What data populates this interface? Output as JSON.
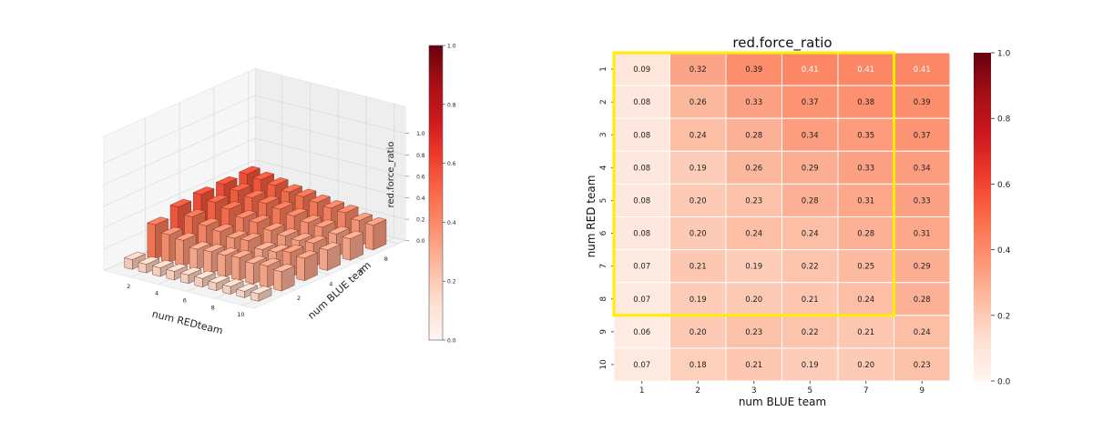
{
  "colors": {
    "cmap": [
      "#fff5f0",
      "#fee0d2",
      "#fcbba1",
      "#fc9272",
      "#fb6a4a",
      "#ef3b2c",
      "#cb181d",
      "#a50f15",
      "#67000d"
    ],
    "highlight": "#ffee00",
    "grid": "#d0d0d0",
    "bar_edge": "#6b2a1a"
  },
  "chart_data": [
    {
      "type": "bar3d",
      "xlabel": "num REDteam",
      "ylabel": "num BLUE team",
      "zlabel": "red.force_ratio",
      "x_ticks": [
        2,
        4,
        6,
        8,
        10
      ],
      "y_ticks": [
        2,
        4,
        6,
        8
      ],
      "z_ticks": [
        0.0,
        0.2,
        0.4,
        0.6,
        0.8,
        1.0
      ],
      "z_tick_labels": [
        "0.0",
        "0.2",
        "0.4",
        "0.6",
        "0.8",
        "1.0"
      ],
      "zlim": [
        0,
        1
      ],
      "colorbar_ticks": [
        "0.0",
        "0.2",
        "0.4",
        "0.6",
        "0.8",
        "1.0"
      ],
      "grid": true
    },
    {
      "type": "heatmap",
      "title": "red.force_ratio",
      "xlabel": "num BLUE team",
      "ylabel": "num RED team",
      "x_categories": [
        "1",
        "2",
        "3",
        "5",
        "7",
        "9"
      ],
      "y_categories": [
        "1",
        "2",
        "3",
        "4",
        "5",
        "6",
        "7",
        "8",
        "9",
        "10"
      ],
      "values": [
        [
          0.09,
          0.32,
          0.39,
          0.41,
          0.41,
          0.41
        ],
        [
          0.08,
          0.26,
          0.33,
          0.37,
          0.38,
          0.39
        ],
        [
          0.08,
          0.24,
          0.28,
          0.34,
          0.35,
          0.37
        ],
        [
          0.08,
          0.19,
          0.26,
          0.29,
          0.33,
          0.34
        ],
        [
          0.08,
          0.2,
          0.23,
          0.28,
          0.31,
          0.33
        ],
        [
          0.08,
          0.2,
          0.24,
          0.24,
          0.28,
          0.31
        ],
        [
          0.07,
          0.21,
          0.19,
          0.22,
          0.25,
          0.29
        ],
        [
          0.07,
          0.19,
          0.2,
          0.21,
          0.24,
          0.28
        ],
        [
          0.06,
          0.2,
          0.23,
          0.22,
          0.21,
          0.24
        ],
        [
          0.07,
          0.18,
          0.21,
          0.19,
          0.2,
          0.23
        ]
      ],
      "vmin": 0.0,
      "vmax": 1.0,
      "colorbar_ticks": [
        "0.0",
        "0.2",
        "0.4",
        "0.6",
        "0.8",
        "1.0"
      ],
      "highlight_box": {
        "rows": [
          "1",
          "8"
        ],
        "cols": [
          "1",
          "7"
        ]
      }
    }
  ]
}
